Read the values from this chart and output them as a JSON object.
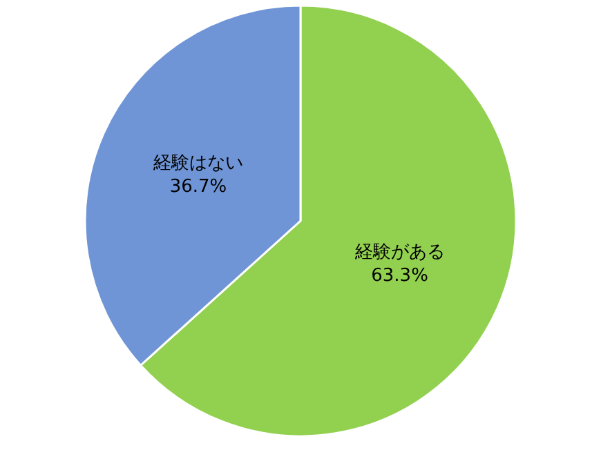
{
  "chart_data": {
    "type": "pie",
    "categories": [
      "経験がある",
      "経験はない"
    ],
    "values": [
      63.3,
      36.7
    ],
    "value_labels": [
      "63.3%",
      "36.7%"
    ],
    "colors": [
      "#92d050",
      "#6f95d6"
    ],
    "legend": false
  }
}
